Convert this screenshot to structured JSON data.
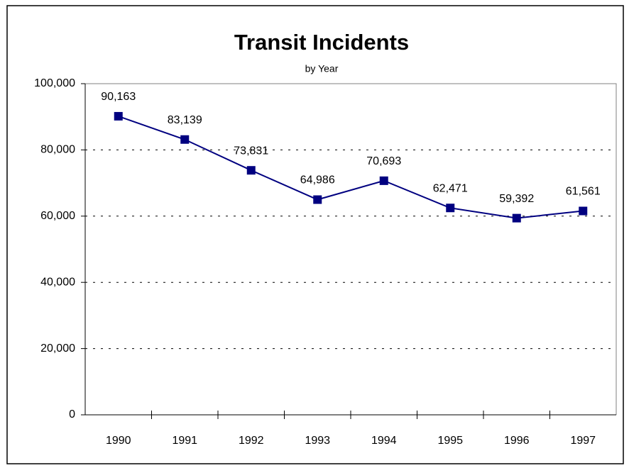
{
  "chart_data": {
    "type": "line",
    "title": "Transit Incidents",
    "subtitle": "by Year",
    "categories": [
      "1990",
      "1991",
      "1992",
      "1993",
      "1994",
      "1995",
      "1996",
      "1997"
    ],
    "series": [
      {
        "name": "Incidents",
        "color": "#000080",
        "values": [
          90163,
          83139,
          73831,
          64986,
          70693,
          62471,
          59392,
          61561
        ],
        "value_labels": [
          "90,163",
          "83,139",
          "73,831",
          "64,986",
          "70,693",
          "62,471",
          "59,392",
          "61,561"
        ]
      }
    ],
    "ylim": [
      0,
      100000
    ],
    "yticks": [
      0,
      {
        "value": 20000,
        "label": "20,000"
      },
      {
        "value": 40000,
        "label": "40,000"
      },
      {
        "value": 60000,
        "label": "60,000"
      },
      {
        "value": 80000,
        "label": "80,000"
      },
      {
        "value": 100000,
        "label": "100,000"
      }
    ],
    "grid": true
  }
}
